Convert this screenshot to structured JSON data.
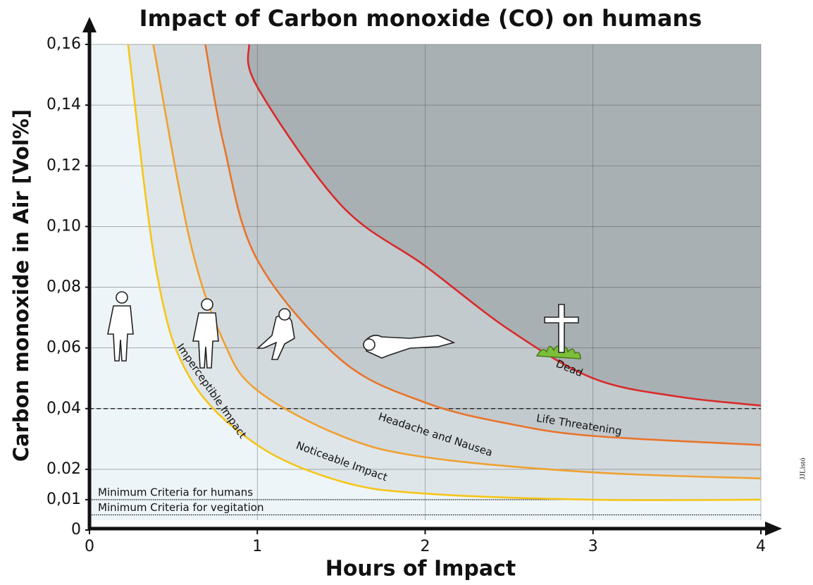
{
  "chart_data": {
    "type": "line",
    "title": "Impact of Carbon monoxide (CO) on humans",
    "x_label": "Hours of Impact",
    "y_label": "Carbon monoxide in Air [Vol%]",
    "credit": "JJListó",
    "xlim": [
      0,
      4
    ],
    "xticks": [
      0,
      1,
      2,
      3,
      4
    ],
    "ylim": [
      0,
      0.16
    ],
    "yticks": [
      0,
      {
        "value": 0.01,
        "label": "0,01"
      },
      {
        "value": 0.02,
        "label": "0.02"
      },
      {
        "value": 0.04,
        "label": "0,04"
      },
      {
        "value": 0.06,
        "label": "0,06"
      },
      {
        "value": 0.08,
        "label": "0,08"
      },
      {
        "value": 0.1,
        "label": "0,10"
      },
      {
        "value": 0.12,
        "label": "0,12"
      },
      {
        "value": 0.14,
        "label": "0,14"
      },
      {
        "value": 0.16,
        "label": "0,16"
      }
    ],
    "grid": true,
    "series": [
      {
        "color": "#f5c518",
        "fill": "#dfe6e9",
        "x": [
          0.23,
          0.4,
          0.6,
          1,
          1.5,
          2,
          3,
          4
        ],
        "values": [
          0.16,
          0.085,
          0.05,
          0.028,
          0.016,
          0.012,
          0.01,
          0.01
        ]
      },
      {
        "color": "#f0a030",
        "fill": "#d3dadd",
        "x": [
          0.38,
          0.6,
          0.8,
          1,
          1.5,
          2,
          3,
          4
        ],
        "values": [
          0.16,
          0.095,
          0.062,
          0.046,
          0.031,
          0.024,
          0.019,
          0.017
        ]
      },
      {
        "color": "#e8742a",
        "fill": "#c3cacd",
        "x": [
          0.69,
          0.8,
          1,
          1.5,
          2,
          2.5,
          3,
          4
        ],
        "values": [
          0.16,
          0.127,
          0.089,
          0.056,
          0.042,
          0.035,
          0.031,
          0.028
        ]
      },
      {
        "color": "#d92a2a",
        "fill": "#a9b0b3",
        "x": [
          0.95,
          1,
          1.5,
          2,
          2.5,
          3,
          3.5,
          4
        ],
        "values": [
          0.16,
          0.146,
          0.107,
          0.087,
          0.066,
          0.05,
          0.044,
          0.041
        ]
      }
    ],
    "reference_lines": [
      {
        "value": 0.04,
        "style": "dashed"
      },
      {
        "value": 0.01,
        "style": "dotted",
        "label": "Minimum Criteria for humans"
      },
      {
        "value": 0.005,
        "style": "dotted",
        "label": "Minimum Criteria for vegitation"
      }
    ],
    "annotations": [
      "Imperceptible Impact",
      "Noticeable Impact",
      "Headache and Nausea",
      "Life Threatening",
      "Dead"
    ]
  }
}
